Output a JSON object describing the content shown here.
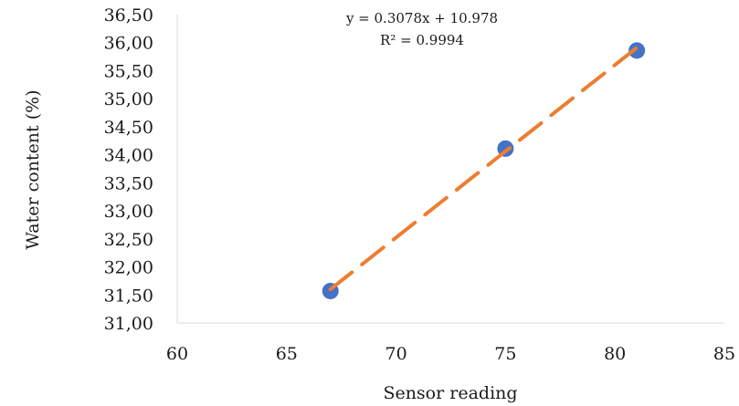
{
  "chart_data": {
    "type": "scatter",
    "xlabel": "Sensor reading",
    "ylabel": "Water content (%)",
    "xlim": [
      60,
      85
    ],
    "ylim": [
      31.0,
      36.5
    ],
    "x_ticks": [
      "60",
      "65",
      "70",
      "75",
      "80",
      "85"
    ],
    "y_ticks": [
      "31,00",
      "31,50",
      "32,00",
      "32,50",
      "33,00",
      "33,50",
      "34,00",
      "34,50",
      "35,00",
      "35,50",
      "36,00",
      "36,50"
    ],
    "grid": false,
    "legend": "none",
    "series": [
      {
        "points": [
          {
            "x": 67,
            "y": 31.57
          },
          {
            "x": 75,
            "y": 34.11
          },
          {
            "x": 81,
            "y": 35.86
          }
        ],
        "color": "#4472C4"
      }
    ],
    "trendline": {
      "type": "linear",
      "color": "#ED7D31",
      "slope": 0.3078,
      "intercept": 10.978,
      "x_range": [
        67,
        81
      ],
      "equation_label": "y = 0.3078x + 10.978",
      "r2_label": "R² = 0.9994"
    }
  }
}
